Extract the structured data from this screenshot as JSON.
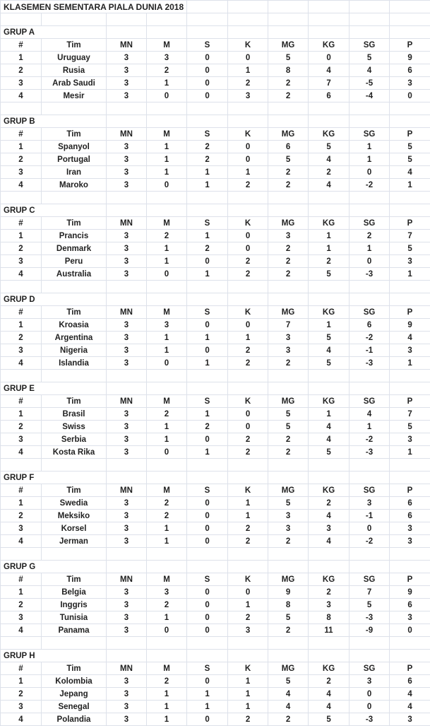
{
  "title": "KLASEMEN SEMENTARA PIALA DUNIA 2018",
  "headers": [
    "#",
    "Tim",
    "MN",
    "M",
    "S",
    "K",
    "MG",
    "KG",
    "SG",
    "P"
  ],
  "groups": [
    {
      "name": "GRUP A",
      "rows": [
        [
          "1",
          "Uruguay",
          "3",
          "3",
          "0",
          "0",
          "5",
          "0",
          "5",
          "9"
        ],
        [
          "2",
          "Rusia",
          "3",
          "2",
          "0",
          "1",
          "8",
          "4",
          "4",
          "6"
        ],
        [
          "3",
          "Arab Saudi",
          "3",
          "1",
          "0",
          "2",
          "2",
          "7",
          "-5",
          "3"
        ],
        [
          "4",
          "Mesir",
          "3",
          "0",
          "0",
          "3",
          "2",
          "6",
          "-4",
          "0"
        ]
      ]
    },
    {
      "name": "GRUP B",
      "rows": [
        [
          "1",
          "Spanyol",
          "3",
          "1",
          "2",
          "0",
          "6",
          "5",
          "1",
          "5"
        ],
        [
          "2",
          "Portugal",
          "3",
          "1",
          "2",
          "0",
          "5",
          "4",
          "1",
          "5"
        ],
        [
          "3",
          "Iran",
          "3",
          "1",
          "1",
          "1",
          "2",
          "2",
          "0",
          "4"
        ],
        [
          "4",
          "Maroko",
          "3",
          "0",
          "1",
          "2",
          "2",
          "4",
          "-2",
          "1"
        ]
      ]
    },
    {
      "name": "GRUP C",
      "rows": [
        [
          "1",
          "Prancis",
          "3",
          "2",
          "1",
          "0",
          "3",
          "1",
          "2",
          "7"
        ],
        [
          "2",
          "Denmark",
          "3",
          "1",
          "2",
          "0",
          "2",
          "1",
          "1",
          "5"
        ],
        [
          "3",
          "Peru",
          "3",
          "1",
          "0",
          "2",
          "2",
          "2",
          "0",
          "3"
        ],
        [
          "4",
          "Australia",
          "3",
          "0",
          "1",
          "2",
          "2",
          "5",
          "-3",
          "1"
        ]
      ]
    },
    {
      "name": "GRUP D",
      "rows": [
        [
          "1",
          "Kroasia",
          "3",
          "3",
          "0",
          "0",
          "7",
          "1",
          "6",
          "9"
        ],
        [
          "2",
          "Argentina",
          "3",
          "1",
          "1",
          "1",
          "3",
          "5",
          "-2",
          "4"
        ],
        [
          "3",
          "Nigeria",
          "3",
          "1",
          "0",
          "2",
          "3",
          "4",
          "-1",
          "3"
        ],
        [
          "4",
          "Islandia",
          "3",
          "0",
          "1",
          "2",
          "2",
          "5",
          "-3",
          "1"
        ]
      ]
    },
    {
      "name": "GRUP E",
      "rows": [
        [
          "1",
          "Brasil",
          "3",
          "2",
          "1",
          "0",
          "5",
          "1",
          "4",
          "7"
        ],
        [
          "2",
          "Swiss",
          "3",
          "1",
          "2",
          "0",
          "5",
          "4",
          "1",
          "5"
        ],
        [
          "3",
          "Serbia",
          "3",
          "1",
          "0",
          "2",
          "2",
          "4",
          "-2",
          "3"
        ],
        [
          "4",
          "Kosta Rika",
          "3",
          "0",
          "1",
          "2",
          "2",
          "5",
          "-3",
          "1"
        ]
      ]
    },
    {
      "name": "GRUP F",
      "rows": [
        [
          "1",
          "Swedia",
          "3",
          "2",
          "0",
          "1",
          "5",
          "2",
          "3",
          "6"
        ],
        [
          "2",
          "Meksiko",
          "3",
          "2",
          "0",
          "1",
          "3",
          "4",
          "-1",
          "6"
        ],
        [
          "3",
          "Korsel",
          "3",
          "1",
          "0",
          "2",
          "3",
          "3",
          "0",
          "3"
        ],
        [
          "4",
          "Jerman",
          "3",
          "1",
          "0",
          "2",
          "2",
          "4",
          "-2",
          "3"
        ]
      ]
    },
    {
      "name": "GRUP G",
      "rows": [
        [
          "1",
          "Belgia",
          "3",
          "3",
          "0",
          "0",
          "9",
          "2",
          "7",
          "9"
        ],
        [
          "2",
          "Inggris",
          "3",
          "2",
          "0",
          "1",
          "8",
          "3",
          "5",
          "6"
        ],
        [
          "3",
          "Tunisia",
          "3",
          "1",
          "0",
          "2",
          "5",
          "8",
          "-3",
          "3"
        ],
        [
          "4",
          "Panama",
          "3",
          "0",
          "0",
          "3",
          "2",
          "11",
          "-9",
          "0"
        ]
      ]
    },
    {
      "name": "GRUP H",
      "rows": [
        [
          "1",
          "Kolombia",
          "3",
          "2",
          "0",
          "1",
          "5",
          "2",
          "3",
          "6"
        ],
        [
          "2",
          "Jepang",
          "3",
          "1",
          "1",
          "1",
          "4",
          "4",
          "0",
          "4"
        ],
        [
          "3",
          "Senegal",
          "3",
          "1",
          "1",
          "1",
          "4",
          "4",
          "0",
          "4"
        ],
        [
          "4",
          "Polandia",
          "3",
          "1",
          "0",
          "2",
          "2",
          "5",
          "-3",
          "3"
        ]
      ]
    }
  ]
}
